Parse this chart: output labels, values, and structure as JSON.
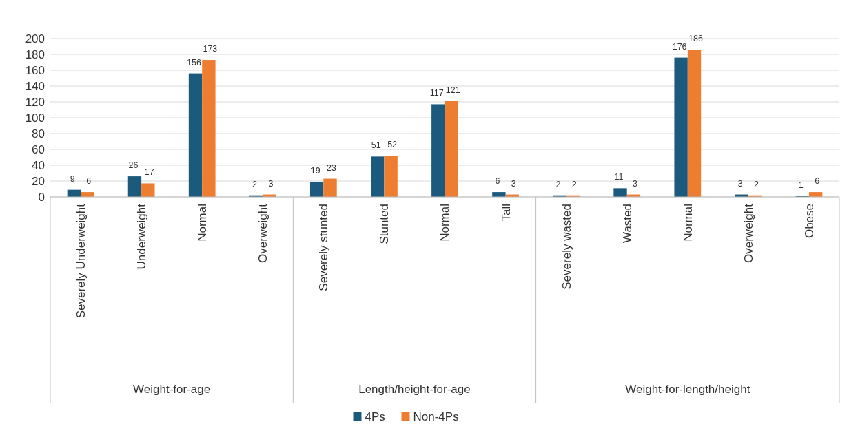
{
  "chart_data": {
    "type": "bar",
    "categories": [
      "Severely Underweight",
      "Underweight",
      "Normal",
      "Overweight",
      "Severely stunted",
      "Stunted",
      "Normal",
      "Tall",
      "Severely wasted",
      "Wasted",
      "Normal",
      "Overweight",
      "Obese"
    ],
    "series": [
      {
        "name": "4Ps",
        "color": "#1c5a7d",
        "values": [
          9,
          26,
          156,
          2,
          19,
          51,
          117,
          6,
          2,
          11,
          176,
          3,
          1
        ]
      },
      {
        "name": "Non-4Ps",
        "color": "#ed7d31",
        "values": [
          6,
          17,
          173,
          3,
          23,
          52,
          121,
          3,
          2,
          3,
          186,
          2,
          6
        ]
      }
    ],
    "annotations": [
      "Weight-for-age",
      "Length/height-for-age",
      "Weight-for-length/height"
    ],
    "ylim": [
      0,
      200
    ],
    "yticks": [
      0,
      20,
      40,
      60,
      80,
      100,
      120,
      140,
      160,
      180,
      200
    ],
    "grid": "y",
    "legend": "bottom",
    "data_labels": true
  }
}
